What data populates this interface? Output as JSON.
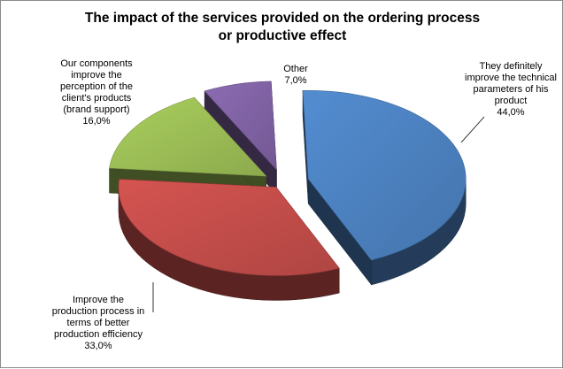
{
  "chart_data": {
    "type": "pie",
    "style": "3d-exploded",
    "title_lines": [
      "The impact of the services provided on the ordering process",
      "or productive effect"
    ],
    "legend": "none",
    "slices": [
      {
        "key": "technical",
        "label_lines": [
          "They definitely",
          "improve the technical",
          "parameters of his",
          "product",
          "44,0%"
        ],
        "value": 44.0,
        "color": "#4a7ebb"
      },
      {
        "key": "production",
        "label_lines": [
          "Improve the",
          "production process in",
          "terms of better",
          "production efficiency",
          "33,0%"
        ],
        "value": 33.0,
        "color": "#be4b48"
      },
      {
        "key": "components",
        "label_lines": [
          "Our components",
          "improve the",
          "perception of the",
          "client's products",
          "(brand support)",
          "16,0%"
        ],
        "value": 16.0,
        "color": "#98b954"
      },
      {
        "key": "other",
        "label_lines": [
          "Other",
          "7,0%"
        ],
        "value": 7.0,
        "color": "#7d60a0"
      }
    ]
  }
}
